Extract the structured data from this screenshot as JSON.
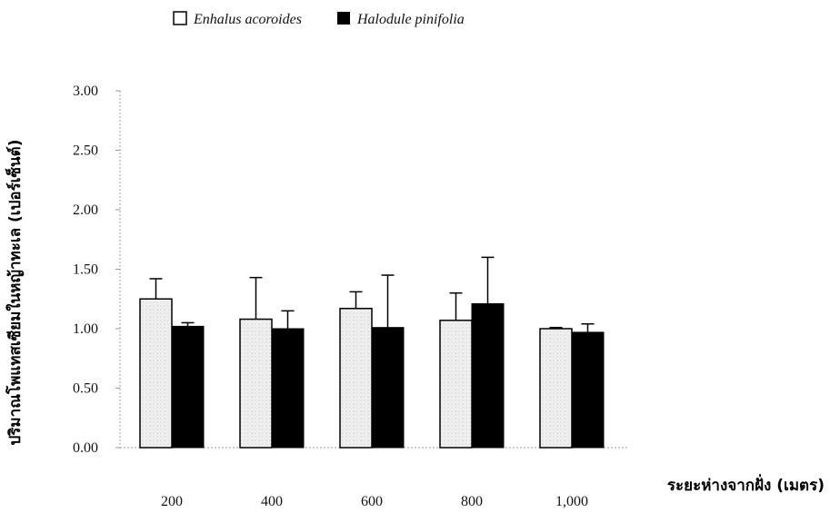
{
  "chart_data": {
    "type": "bar",
    "categories": [
      "200",
      "400",
      "600",
      "800",
      "1,000"
    ],
    "series": [
      {
        "name": "Enhalus acoroides",
        "values": [
          1.25,
          1.08,
          1.17,
          1.07,
          1.0
        ],
        "error": [
          0.17,
          0.35,
          0.14,
          0.23,
          0.01
        ],
        "color": "#f2f2f2"
      },
      {
        "name": "Halodule pinifolia",
        "values": [
          1.02,
          1.0,
          1.01,
          1.21,
          0.97
        ],
        "error": [
          0.03,
          0.15,
          0.44,
          0.39,
          0.07
        ],
        "color": "#000000"
      }
    ],
    "yticks": [
      "0.00",
      "0.50",
      "1.00",
      "1.50",
      "2.00",
      "2.50",
      "3.00"
    ],
    "ylim": [
      0,
      3
    ],
    "ylabel": "ปริมาณโพแทสเซียมในหญ้าทะเล (เปอร์เซ็นต์)",
    "xlabel": "ระยะห่างจากฝั่ง (เมตร)",
    "legend_position": "top",
    "grid": false
  }
}
